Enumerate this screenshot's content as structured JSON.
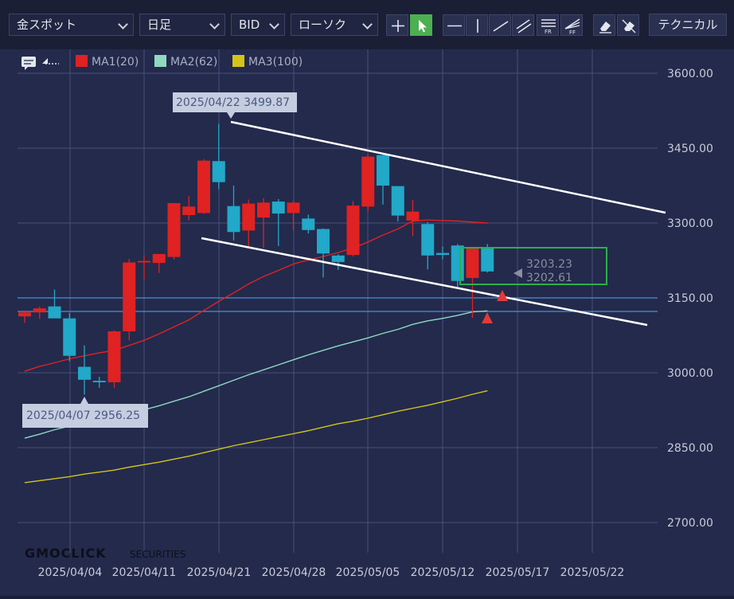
{
  "toolbar": {
    "symbol": "金スポット",
    "period": "日足",
    "price_type": "BID",
    "chart_style": "ローソク",
    "tools": [
      "crosshair-tool",
      "pointer-tool",
      "horizontal-line-tool",
      "vertical-line-tool",
      "trend-line-tool",
      "channel-tool",
      "fibonacci-retracement-tool",
      "fibonacci-fan-tool",
      "eraser-tool",
      "erase-all-tool"
    ],
    "technical_label": "テクニカル"
  },
  "legend": {
    "ma1": {
      "label": "MA1(20)",
      "color": "#e02222"
    },
    "ma2": {
      "label": "MA2(62)",
      "color": "#8fd9c0"
    },
    "ma3": {
      "label": "MA3(100)",
      "color": "#d4c41a"
    }
  },
  "colors": {
    "up": "#e02222",
    "down": "#22a8c8",
    "background": "#232a4c",
    "grid": "#4a5078"
  },
  "watermark": {
    "logo": "GMOCLICK",
    "suffix": "SECURITIES"
  },
  "annotations": {
    "high": "2025/04/22 3499.87",
    "low": "2025/04/07 2956.25"
  },
  "price_readout": {
    "upper": "3203.23",
    "lower": "3202.61"
  },
  "chart_data": {
    "type": "candlestick",
    "y_axis": {
      "ticks": [
        3600,
        3450,
        3300,
        3150,
        3000,
        2850,
        2700
      ]
    },
    "x_axis": {
      "ticks": [
        "2025/04/04",
        "2025/04/11",
        "2025/04/21",
        "2025/04/28",
        "2025/05/05",
        "2025/05/12",
        "2025/05/17",
        "2025/05/22"
      ]
    },
    "candles": [
      {
        "o": 3113,
        "h": 3125,
        "l": 3100,
        "c": 3121
      },
      {
        "o": 3121,
        "h": 3133,
        "l": 3108,
        "c": 3129
      },
      {
        "o": 3133,
        "h": 3167,
        "l": 3112,
        "c": 3109
      },
      {
        "o": 3109,
        "h": 3120,
        "l": 3023,
        "c": 3034
      },
      {
        "o": 3012,
        "h": 3055,
        "l": 2956,
        "c": 2986
      },
      {
        "o": 2984,
        "h": 2992,
        "l": 2970,
        "c": 2981
      },
      {
        "o": 2981,
        "h": 3085,
        "l": 2970,
        "c": 3083
      },
      {
        "o": 3083,
        "h": 3228,
        "l": 3065,
        "c": 3221
      },
      {
        "o": 3221,
        "h": 3236,
        "l": 3188,
        "c": 3224
      },
      {
        "o": 3220,
        "h": 3236,
        "l": 3200,
        "c": 3238
      },
      {
        "o": 3232,
        "h": 3340,
        "l": 3227,
        "c": 3340
      },
      {
        "o": 3316,
        "h": 3354,
        "l": 3305,
        "c": 3333
      },
      {
        "o": 3320,
        "h": 3428,
        "l": 3318,
        "c": 3425
      },
      {
        "o": 3424,
        "h": 3499,
        "l": 3368,
        "c": 3382
      },
      {
        "o": 3334,
        "h": 3375,
        "l": 3265,
        "c": 3282
      },
      {
        "o": 3285,
        "h": 3347,
        "l": 3250,
        "c": 3339
      },
      {
        "o": 3311,
        "h": 3350,
        "l": 3250,
        "c": 3341
      },
      {
        "o": 3343,
        "h": 3348,
        "l": 3254,
        "c": 3319
      },
      {
        "o": 3320,
        "h": 3344,
        "l": 3286,
        "c": 3341
      },
      {
        "o": 3309,
        "h": 3317,
        "l": 3279,
        "c": 3286
      },
      {
        "o": 3288,
        "h": 3289,
        "l": 3191,
        "c": 3239
      },
      {
        "o": 3235,
        "h": 3238,
        "l": 3206,
        "c": 3222
      },
      {
        "o": 3236,
        "h": 3344,
        "l": 3233,
        "c": 3335
      },
      {
        "o": 3333,
        "h": 3437,
        "l": 3324,
        "c": 3433
      },
      {
        "o": 3436,
        "h": 3441,
        "l": 3337,
        "c": 3375
      },
      {
        "o": 3374,
        "h": 3373,
        "l": 3303,
        "c": 3315
      },
      {
        "o": 3305,
        "h": 3346,
        "l": 3274,
        "c": 3323
      },
      {
        "o": 3298,
        "h": 3302,
        "l": 3207,
        "c": 3235
      },
      {
        "o": 3240,
        "h": 3253,
        "l": 3227,
        "c": 3236
      },
      {
        "o": 3255,
        "h": 3258,
        "l": 3172,
        "c": 3184
      },
      {
        "o": 3190,
        "h": 3252,
        "l": 3110,
        "c": 3250
      },
      {
        "o": 3249,
        "h": 3258,
        "l": 3201,
        "c": 3203
      }
    ],
    "ma1": [
      3003,
      3013,
      3020,
      3028,
      3034,
      3040,
      3045,
      3055,
      3065,
      3078,
      3092,
      3106,
      3125,
      3143,
      3160,
      3178,
      3193,
      3205,
      3218,
      3226,
      3233,
      3241,
      3250,
      3262,
      3276,
      3288,
      3304,
      3306,
      3305,
      3304,
      3302,
      3300
    ],
    "ma2": [
      2869,
      2877,
      2886,
      2893,
      2899,
      2905,
      2911,
      2918,
      2926,
      2934,
      2943,
      2952,
      2963,
      2974,
      2985,
      2996,
      3006,
      3016,
      3026,
      3036,
      3045,
      3054,
      3062,
      3070,
      3079,
      3087,
      3097,
      3104,
      3109,
      3115,
      3122,
      3124
    ],
    "ma3": [
      2780,
      2784,
      2788,
      2792,
      2797,
      2801,
      2805,
      2811,
      2816,
      2821,
      2827,
      2833,
      2840,
      2847,
      2854,
      2860,
      2866,
      2872,
      2878,
      2884,
      2891,
      2898,
      2903,
      2909,
      2916,
      2923,
      2929,
      2935,
      2942,
      2949,
      2957,
      2964
    ]
  }
}
